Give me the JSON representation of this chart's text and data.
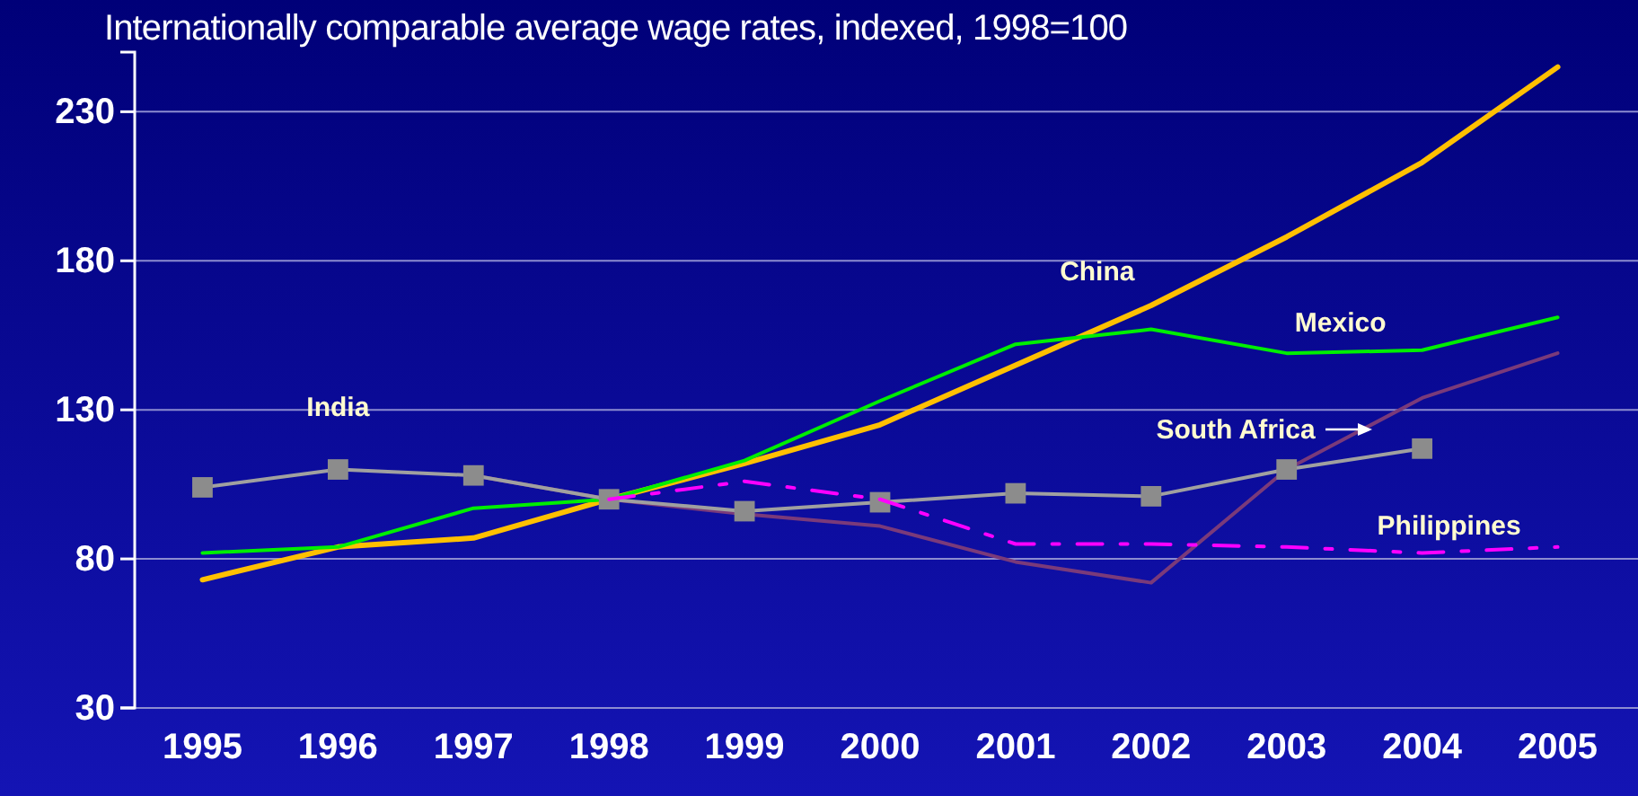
{
  "chart_data": {
    "type": "line",
    "title": "Internationally comparable average wage rates, indexed, 1998=100",
    "categories": [
      "1995",
      "1996",
      "1997",
      "1998",
      "1999",
      "2000",
      "2001",
      "2002",
      "2003",
      "2004",
      "2005"
    ],
    "ylim": [
      30,
      250
    ],
    "yticks": [
      30,
      80,
      130,
      180,
      230
    ],
    "grid": "y",
    "series": [
      {
        "name": "China",
        "color": "#ffc000",
        "marker": "none",
        "line_style": "solid",
        "values": [
          73,
          84,
          87,
          100,
          112,
          125,
          145,
          165,
          188,
          213,
          245
        ]
      },
      {
        "name": "Mexico",
        "color": "#00ee00",
        "marker": "none",
        "line_style": "solid",
        "values": [
          82,
          84,
          97,
          100,
          113,
          133,
          152,
          157,
          149,
          150,
          161
        ]
      },
      {
        "name": "South Africa",
        "color": "#7a3a7a",
        "marker": "none",
        "line_style": "solid",
        "values": [
          null,
          null,
          108,
          100,
          95,
          91,
          79,
          72,
          110,
          134,
          149
        ]
      },
      {
        "name": "India",
        "color": "#a0a0a0",
        "marker": "square",
        "line_style": "solid",
        "values": [
          104,
          110,
          108,
          100,
          96,
          99,
          102,
          101,
          110,
          117,
          null
        ]
      },
      {
        "name": "Philippines",
        "color": "#ff00ff",
        "marker": "none",
        "line_style": "dashed",
        "values": [
          null,
          null,
          null,
          100,
          106,
          100,
          85,
          85,
          84,
          82,
          84
        ]
      }
    ]
  }
}
